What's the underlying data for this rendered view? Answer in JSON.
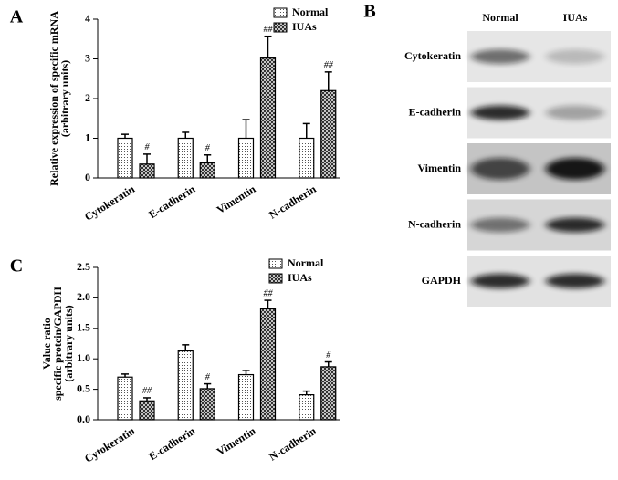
{
  "chart_data": [
    {
      "type": "bar",
      "panel": "A",
      "ylabel": [
        "Relative expression of specific mRNA",
        "(arbitrary units)"
      ],
      "categories": [
        "Cytokeratin",
        "E-cadherin",
        "Vimentin",
        "N-cadherin"
      ],
      "series": [
        {
          "name": "Normal",
          "values": [
            1,
            1,
            1,
            1
          ],
          "errors": [
            0.1,
            0.15,
            0.47,
            0.37
          ]
        },
        {
          "name": "IUAs",
          "values": [
            0.35,
            0.38,
            3.02,
            2.2
          ],
          "errors": [
            0.25,
            0.2,
            0.55,
            0.47
          ],
          "annotations": [
            "#",
            "#",
            "##",
            "##"
          ]
        }
      ],
      "ylim": [
        0,
        4
      ],
      "yticks": [
        0,
        1,
        2,
        3,
        4
      ]
    },
    {
      "type": "bar",
      "panel": "C",
      "ylabel": [
        "Value ratio",
        "specific protein/GAPDH",
        "(arbitrary units)"
      ],
      "categories": [
        "Cytokeratin",
        "E-cadherin",
        "Vimentin",
        "N-cadherin"
      ],
      "series": [
        {
          "name": "Normal",
          "values": [
            0.7,
            1.13,
            0.74,
            0.41
          ],
          "errors": [
            0.05,
            0.1,
            0.07,
            0.06
          ]
        },
        {
          "name": "IUAs",
          "values": [
            0.31,
            0.51,
            1.82,
            0.87
          ],
          "errors": [
            0.05,
            0.08,
            0.14,
            0.08
          ],
          "annotations": [
            "##",
            "#",
            "##",
            "#"
          ]
        }
      ],
      "ylim": [
        0,
        2.5
      ],
      "yticks": [
        {
          "value": 0,
          "label": "0.0"
        },
        0.5,
        {
          "value": 1,
          "label": "1.0"
        },
        1.5,
        {
          "value": 2,
          "label": "2.0"
        },
        2.5
      ]
    }
  ],
  "blot": {
    "panel": "B",
    "columns": [
      "Normal",
      "IUAs"
    ],
    "rows": [
      "Cytokeratin",
      "E-cadherin",
      "Vimentin",
      "N-cadherin",
      "GAPDH"
    ]
  }
}
